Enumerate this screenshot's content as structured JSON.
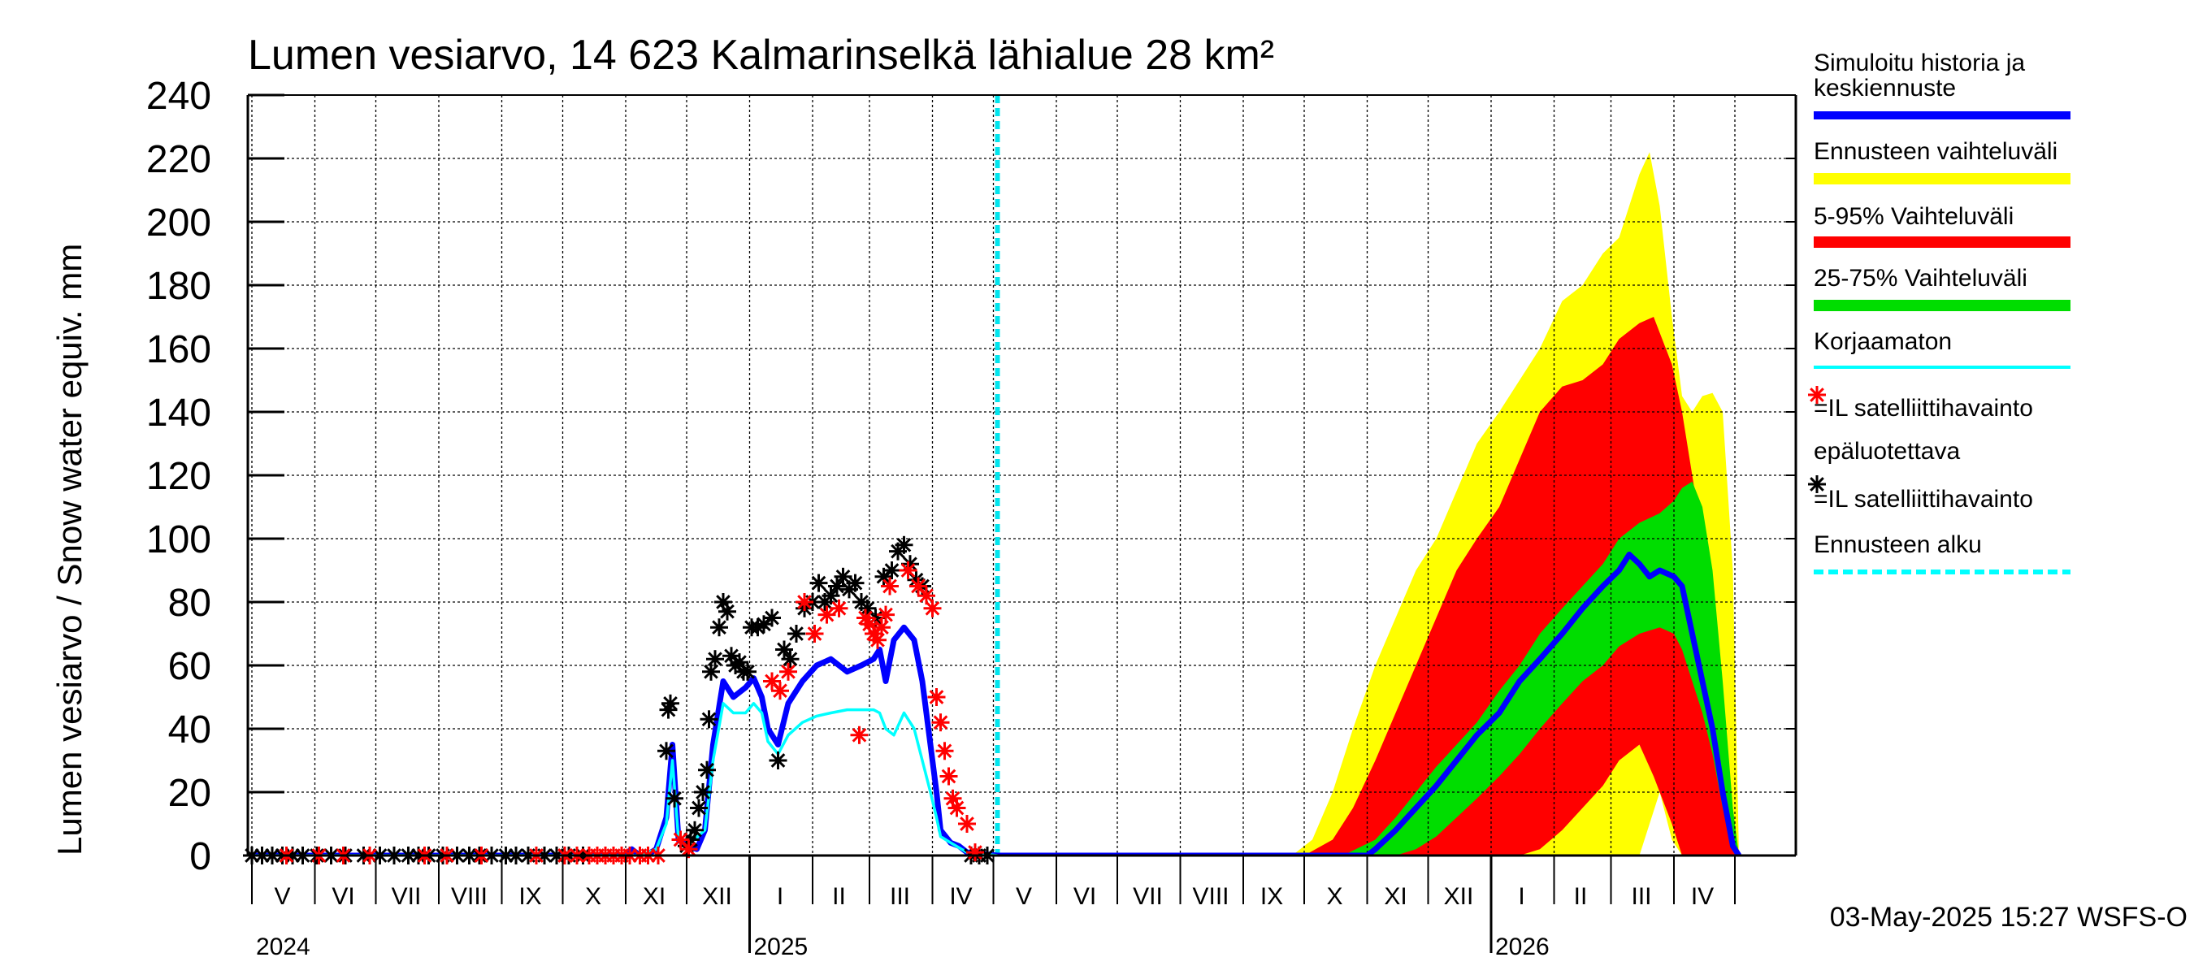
{
  "chart_data": {
    "type": "area",
    "title": "Lumen vesiarvo, 14 623 Kalmarinselkä lähialue 28 km²",
    "ylabel": "Lumen vesiarvo / Snow water equiv.    mm",
    "ylim": [
      0,
      240
    ],
    "y_ticks": [
      0,
      20,
      40,
      60,
      80,
      100,
      120,
      140,
      160,
      180,
      200,
      220,
      240
    ],
    "xlim": [
      "2024-04-29",
      "2026-05-31"
    ],
    "grid": true,
    "legend_position": "right",
    "forecast_start": "2025-05-03",
    "footer": "03-May-2025 15:27 WSFS-O",
    "month_labels": [
      {
        "label": "V",
        "date": "2024-05-16"
      },
      {
        "label": "VI",
        "date": "2024-06-15"
      },
      {
        "label": "VII",
        "date": "2024-07-16"
      },
      {
        "label": "VIII",
        "date": "2024-08-16"
      },
      {
        "label": "IX",
        "date": "2024-09-15"
      },
      {
        "label": "X",
        "date": "2024-10-16"
      },
      {
        "label": "XI",
        "date": "2024-11-15"
      },
      {
        "label": "XII",
        "date": "2024-12-16"
      },
      {
        "label": "I",
        "date": "2025-01-16"
      },
      {
        "label": "II",
        "date": "2025-02-14"
      },
      {
        "label": "III",
        "date": "2025-03-16"
      },
      {
        "label": "IV",
        "date": "2025-04-15"
      },
      {
        "label": "V",
        "date": "2025-05-16"
      },
      {
        "label": "VI",
        "date": "2025-06-15"
      },
      {
        "label": "VII",
        "date": "2025-07-16"
      },
      {
        "label": "VIII",
        "date": "2025-08-16"
      },
      {
        "label": "IX",
        "date": "2025-09-15"
      },
      {
        "label": "X",
        "date": "2025-10-16"
      },
      {
        "label": "XI",
        "date": "2025-11-15"
      },
      {
        "label": "XII",
        "date": "2025-12-16"
      },
      {
        "label": "I",
        "date": "2026-01-16"
      },
      {
        "label": "II",
        "date": "2026-02-14"
      },
      {
        "label": "III",
        "date": "2026-03-16"
      },
      {
        "label": "IV",
        "date": "2026-04-15"
      }
    ],
    "month_boundaries": [
      "2024-05-01",
      "2024-06-01",
      "2024-07-01",
      "2024-08-01",
      "2024-09-01",
      "2024-10-01",
      "2024-11-01",
      "2024-12-01",
      "2025-01-01",
      "2025-02-01",
      "2025-03-01",
      "2025-04-01",
      "2025-05-01",
      "2025-06-01",
      "2025-07-01",
      "2025-08-01",
      "2025-09-01",
      "2025-10-01",
      "2025-11-01",
      "2025-12-01",
      "2026-01-01",
      "2026-02-01",
      "2026-03-01",
      "2026-04-01",
      "2026-05-01"
    ],
    "year_labels": [
      {
        "label": "2024",
        "date": "2024-05-01"
      },
      {
        "label": "2025",
        "date": "2025-01-01"
      },
      {
        "label": "2026",
        "date": "2026-01-01"
      }
    ],
    "legend": [
      {
        "label": "Simuloitu historia ja keskiennuste",
        "color": "#0000ff",
        "symbol": "thick-line"
      },
      {
        "label": "Ennusteen vaihteluväli",
        "color": "#ffff00",
        "symbol": "thick-line"
      },
      {
        "label": "5-95% Vaihteluväli",
        "color": "#ff0000",
        "symbol": "thick-line"
      },
      {
        "label": "25-75% Vaihteluväli",
        "color": "#00dd00",
        "symbol": "thick-line"
      },
      {
        "label": "Korjaamaton",
        "color": "#00ffff",
        "symbol": "thin-line"
      },
      {
        "label": "=IL satelliittihavainto epäluotettava",
        "color": "#ff0000",
        "symbol": "star"
      },
      {
        "label": "=IL satelliittihavainto",
        "color": "#000000",
        "symbol": "star"
      },
      {
        "label": "Ennusteen alku",
        "color": "#00ffff",
        "symbol": "dashed-line"
      }
    ],
    "bands": [
      {
        "name": "Ennusteen vaihteluväli",
        "color": "#ffff00",
        "x": [
          "2025-05-03",
          "2025-09-25",
          "2025-10-05",
          "2025-10-15",
          "2025-10-25",
          "2025-11-05",
          "2025-11-15",
          "2025-11-25",
          "2025-12-05",
          "2025-12-15",
          "2025-12-25",
          "2026-01-05",
          "2026-01-15",
          "2026-01-25",
          "2026-02-05",
          "2026-02-15",
          "2026-02-25",
          "2026-03-05",
          "2026-03-10",
          "2026-03-15",
          "2026-03-20",
          "2026-03-25",
          "2026-03-31",
          "2026-04-05",
          "2026-04-10",
          "2026-04-15",
          "2026-04-20",
          "2026-04-25",
          "2026-04-30",
          "2026-05-03"
        ],
        "lower": [
          0,
          0,
          0,
          0,
          0,
          0,
          0,
          0,
          0,
          0,
          0,
          0,
          0,
          0,
          0,
          0,
          0,
          0,
          0,
          0,
          10,
          20,
          5,
          0,
          0,
          0,
          0,
          0,
          0,
          0
        ],
        "upper": [
          0,
          0,
          5,
          20,
          40,
          60,
          75,
          90,
          100,
          115,
          130,
          140,
          150,
          160,
          175,
          180,
          190,
          195,
          205,
          215,
          222,
          205,
          170,
          145,
          140,
          145,
          146,
          140,
          90,
          0
        ]
      },
      {
        "name": "5-95% Vaihteluväli",
        "color": "#ff0000",
        "x": [
          "2025-05-03",
          "2025-10-01",
          "2025-10-15",
          "2025-10-25",
          "2025-11-05",
          "2025-11-15",
          "2025-11-25",
          "2025-12-05",
          "2025-12-15",
          "2025-12-25",
          "2026-01-05",
          "2026-01-15",
          "2026-01-25",
          "2026-02-05",
          "2026-02-15",
          "2026-02-25",
          "2026-03-05",
          "2026-03-15",
          "2026-03-22",
          "2026-03-31",
          "2026-04-05",
          "2026-04-10",
          "2026-04-15",
          "2026-04-20",
          "2026-04-25",
          "2026-04-30",
          "2026-05-03"
        ],
        "lower": [
          0,
          0,
          0,
          0,
          0,
          0,
          0,
          0,
          0,
          0,
          0,
          0,
          2,
          8,
          15,
          22,
          30,
          35,
          25,
          10,
          0,
          0,
          0,
          0,
          0,
          0,
          0
        ],
        "upper": [
          0,
          0,
          5,
          15,
          30,
          45,
          60,
          75,
          90,
          100,
          110,
          125,
          140,
          148,
          150,
          155,
          163,
          168,
          170,
          155,
          140,
          120,
          100,
          80,
          40,
          10,
          0
        ]
      },
      {
        "name": "25-75% Vaihteluväli",
        "color": "#00dd00",
        "x": [
          "2025-05-03",
          "2025-10-20",
          "2025-11-05",
          "2025-11-15",
          "2025-11-25",
          "2025-12-05",
          "2025-12-15",
          "2025-12-25",
          "2026-01-05",
          "2026-01-15",
          "2026-01-25",
          "2026-02-05",
          "2026-02-15",
          "2026-02-25",
          "2026-03-05",
          "2026-03-15",
          "2026-03-25",
          "2026-04-01",
          "2026-04-05",
          "2026-04-10",
          "2026-04-15",
          "2026-04-20",
          "2026-04-25",
          "2026-04-30",
          "2026-05-03"
        ],
        "lower": [
          0,
          0,
          0,
          0,
          2,
          6,
          12,
          18,
          25,
          32,
          40,
          48,
          55,
          60,
          66,
          70,
          72,
          70,
          65,
          55,
          45,
          32,
          15,
          2,
          0
        ],
        "upper": [
          0,
          0,
          5,
          12,
          20,
          28,
          35,
          42,
          52,
          60,
          70,
          78,
          85,
          92,
          100,
          105,
          108,
          112,
          116,
          118,
          110,
          90,
          55,
          15,
          0
        ]
      }
    ],
    "series": [
      {
        "name": "Simuloitu historia ja keskiennuste",
        "color": "#0000ff",
        "x": [
          "2024-04-29",
          "2024-10-31",
          "2024-11-04",
          "2024-11-08",
          "2024-11-11",
          "2024-11-16",
          "2024-11-21",
          "2024-11-24",
          "2024-11-27",
          "2024-12-01",
          "2024-12-06",
          "2024-12-10",
          "2024-12-14",
          "2024-12-19",
          "2024-12-24",
          "2024-12-30",
          "2025-01-03",
          "2025-01-07",
          "2025-01-10",
          "2025-01-15",
          "2025-01-20",
          "2025-01-27",
          "2025-02-03",
          "2025-02-10",
          "2025-02-18",
          "2025-02-25",
          "2025-03-03",
          "2025-03-06",
          "2025-03-09",
          "2025-03-13",
          "2025-03-18",
          "2025-03-23",
          "2025-03-27",
          "2025-03-31",
          "2025-04-03",
          "2025-04-05",
          "2025-04-10",
          "2025-04-14",
          "2025-04-18",
          "2025-05-03",
          "2025-06-01",
          "2025-10-25",
          "2025-11-01",
          "2025-11-05",
          "2025-11-15",
          "2025-11-25",
          "2025-12-05",
          "2025-12-15",
          "2025-12-25",
          "2026-01-05",
          "2026-01-15",
          "2026-01-25",
          "2026-02-05",
          "2026-02-15",
          "2026-02-25",
          "2026-03-05",
          "2026-03-10",
          "2026-03-15",
          "2026-03-20",
          "2026-03-25",
          "2026-04-01",
          "2026-04-05",
          "2026-04-10",
          "2026-04-15",
          "2026-04-20",
          "2026-04-25",
          "2026-04-30",
          "2026-05-03"
        ],
        "y": [
          0,
          0,
          2,
          0,
          0,
          2,
          12,
          35,
          5,
          3,
          2,
          8,
          35,
          55,
          50,
          53,
          56,
          50,
          40,
          35,
          48,
          55,
          60,
          62,
          58,
          60,
          62,
          65,
          55,
          68,
          72,
          68,
          55,
          35,
          20,
          8,
          4,
          3,
          1,
          0,
          0,
          0,
          0,
          2,
          8,
          15,
          22,
          30,
          38,
          45,
          55,
          62,
          70,
          78,
          85,
          90,
          95,
          92,
          88,
          90,
          88,
          85,
          70,
          55,
          40,
          20,
          3,
          0
        ]
      },
      {
        "name": "Korjaamaton",
        "color": "#00ffff",
        "x": [
          "2024-04-29",
          "2024-10-31",
          "2024-11-08",
          "2024-11-16",
          "2024-11-21",
          "2024-11-24",
          "2024-11-27",
          "2024-12-01",
          "2024-12-10",
          "2024-12-14",
          "2024-12-19",
          "2024-12-24",
          "2024-12-30",
          "2025-01-03",
          "2025-01-07",
          "2025-01-10",
          "2025-01-15",
          "2025-01-20",
          "2025-01-27",
          "2025-02-03",
          "2025-02-10",
          "2025-02-18",
          "2025-02-25",
          "2025-03-03",
          "2025-03-06",
          "2025-03-09",
          "2025-03-13",
          "2025-03-18",
          "2025-03-23",
          "2025-03-27",
          "2025-03-31",
          "2025-04-03",
          "2025-04-05",
          "2025-04-10",
          "2025-04-18",
          "2025-05-03"
        ],
        "y": [
          0,
          0,
          0,
          2,
          10,
          30,
          5,
          3,
          8,
          30,
          48,
          45,
          45,
          48,
          45,
          36,
          32,
          38,
          42,
          44,
          45,
          46,
          46,
          46,
          45,
          40,
          38,
          45,
          40,
          30,
          20,
          12,
          6,
          4,
          1,
          0
        ]
      }
    ],
    "observations": [
      {
        "name": "=IL satelliittihavainto",
        "color": "#000000",
        "x": [
          "2024-05-01",
          "2024-05-06",
          "2024-05-11",
          "2024-05-16",
          "2024-05-21",
          "2024-05-26",
          "2024-06-02",
          "2024-06-09",
          "2024-06-16",
          "2024-06-25",
          "2024-07-03",
          "2024-07-10",
          "2024-07-17",
          "2024-07-22",
          "2024-07-27",
          "2024-08-03",
          "2024-08-10",
          "2024-08-16",
          "2024-08-21",
          "2024-08-27",
          "2024-09-03",
          "2024-09-08",
          "2024-09-14",
          "2024-09-22",
          "2024-09-28",
          "2024-10-04",
          "2024-10-11",
          "2024-11-21",
          "2024-11-22",
          "2024-11-23",
          "2024-11-25",
          "2024-12-01",
          "2024-12-03",
          "2024-12-05",
          "2024-12-07",
          "2024-12-09",
          "2024-12-11",
          "2024-12-12",
          "2024-12-13",
          "2024-12-15",
          "2024-12-17",
          "2024-12-19",
          "2024-12-21",
          "2024-12-23",
          "2024-12-25",
          "2024-12-27",
          "2024-12-29",
          "2024-12-31",
          "2025-01-02",
          "2025-01-05",
          "2025-01-08",
          "2025-01-12",
          "2025-01-15",
          "2025-01-18",
          "2025-01-21",
          "2025-01-24",
          "2025-01-28",
          "2025-02-01",
          "2025-02-04",
          "2025-02-07",
          "2025-02-10",
          "2025-02-13",
          "2025-02-16",
          "2025-02-19",
          "2025-02-22",
          "2025-02-25",
          "2025-02-28",
          "2025-03-04",
          "2025-03-08",
          "2025-03-12",
          "2025-03-15",
          "2025-03-18",
          "2025-03-21",
          "2025-03-24",
          "2025-03-27",
          "2025-04-20",
          "2025-04-24",
          "2025-04-28"
        ],
        "y": [
          0,
          0,
          0,
          0,
          0,
          0,
          0,
          0,
          0,
          0,
          0,
          0,
          0,
          0,
          0,
          0,
          0,
          0,
          0,
          0,
          0,
          0,
          0,
          0,
          0,
          0,
          0,
          33,
          46,
          48,
          18,
          3,
          5,
          8,
          15,
          20,
          27,
          43,
          58,
          62,
          72,
          80,
          77,
          63,
          60,
          61,
          58,
          58,
          72,
          72,
          73,
          75,
          30,
          65,
          62,
          70,
          78,
          80,
          86,
          80,
          82,
          85,
          88,
          84,
          86,
          80,
          78,
          75,
          88,
          90,
          96,
          98,
          92,
          87,
          85,
          0,
          0,
          0
        ]
      },
      {
        "name": "=IL satelliittihavainto epäluotettava",
        "color": "#ff0000",
        "x": [
          "2024-05-18",
          "2024-06-03",
          "2024-06-15",
          "2024-06-28",
          "2024-07-25",
          "2024-08-05",
          "2024-08-22",
          "2024-09-18",
          "2024-10-02",
          "2024-10-08",
          "2024-10-14",
          "2024-10-18",
          "2024-10-22",
          "2024-10-26",
          "2024-10-30",
          "2024-11-03",
          "2024-11-08",
          "2024-11-12",
          "2024-11-17",
          "2024-11-28",
          "2024-12-02",
          "2025-01-12",
          "2025-01-16",
          "2025-01-20",
          "2025-01-28",
          "2025-02-02",
          "2025-02-08",
          "2025-02-14",
          "2025-02-24",
          "2025-02-27",
          "2025-03-01",
          "2025-03-03",
          "2025-03-05",
          "2025-03-07",
          "2025-03-09",
          "2025-03-11",
          "2025-03-20",
          "2025-03-25",
          "2025-03-29",
          "2025-04-01",
          "2025-04-03",
          "2025-04-05",
          "2025-04-07",
          "2025-04-09",
          "2025-04-11",
          "2025-04-13",
          "2025-04-18",
          "2025-04-22"
        ],
        "y": [
          0,
          0,
          0,
          0,
          0,
          0,
          0,
          0,
          0,
          0,
          0,
          0,
          0,
          0,
          0,
          0,
          0,
          0,
          0,
          5,
          2,
          55,
          52,
          58,
          80,
          70,
          76,
          78,
          38,
          75,
          73,
          70,
          68,
          72,
          76,
          85,
          90,
          85,
          82,
          78,
          50,
          42,
          33,
          25,
          18,
          15,
          10,
          1
        ]
      }
    ]
  }
}
